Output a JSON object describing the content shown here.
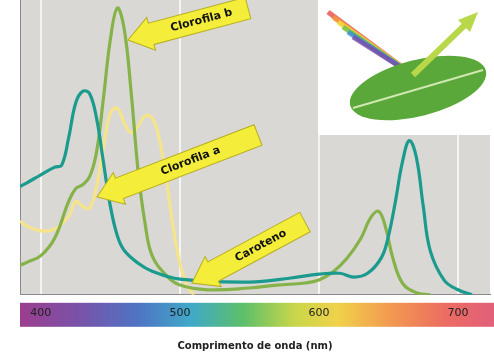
{
  "chart_data": {
    "type": "line",
    "x_label": "Comprimento de onda (nm)",
    "xlim": [
      385,
      723
    ],
    "xticks": [
      400,
      500,
      600,
      700
    ],
    "ylim": [
      0,
      100
    ],
    "grid": true,
    "tick_labels": "x",
    "series": [
      {
        "name": "Clorofila a",
        "color": "#1b9a8e",
        "x": [
          385,
          390,
          400,
          410,
          415,
          420,
          425,
          430,
          435,
          440,
          445,
          450,
          455,
          460,
          470,
          480,
          500,
          550,
          580,
          600,
          615,
          625,
          635,
          645,
          650,
          655,
          660,
          665,
          670,
          675,
          680,
          690,
          700,
          710
        ],
        "values": [
          36.7,
          38,
          40.7,
          43.3,
          44,
          53.3,
          65,
          69,
          68.3,
          60,
          45,
          30,
          20,
          15,
          10.7,
          8,
          5.3,
          4.3,
          5.7,
          7,
          7.3,
          6,
          7.3,
          12.7,
          20,
          31.7,
          45,
          52.3,
          46.7,
          30,
          15,
          5,
          1.7,
          0
        ]
      },
      {
        "name": "Clorofila b",
        "color": "#86b24a",
        "x": [
          385,
          390,
          400,
          410,
          420,
          425,
          430,
          435,
          440,
          445,
          450,
          455,
          460,
          465,
          470,
          475,
          480,
          490,
          500,
          520,
          550,
          570,
          590,
          600,
          610,
          620,
          630,
          637,
          643,
          648,
          653,
          660,
          670,
          680
        ],
        "values": [
          10,
          11,
          13.3,
          19.3,
          31.7,
          36,
          37.3,
          40,
          48.3,
          66.7,
          86.7,
          97.3,
          90,
          68.3,
          41.7,
          24,
          13.3,
          6.7,
          3.3,
          1.7,
          2.3,
          3.3,
          4,
          5,
          7.7,
          12.3,
          19,
          26,
          28.3,
          22.7,
          12.7,
          4,
          0.7,
          0
        ]
      },
      {
        "name": "Caroteno",
        "color": "#f6e48a",
        "x": [
          385,
          390,
          400,
          410,
          420,
          425,
          430,
          435,
          440,
          445,
          450,
          455,
          460,
          465,
          470,
          475,
          480,
          485,
          490,
          495,
          500,
          505,
          510
        ],
        "values": [
          25,
          23.3,
          21.7,
          22.3,
          26.7,
          31.7,
          30,
          29.3,
          36.7,
          50,
          61.7,
          63.3,
          58.3,
          55,
          57.3,
          60.7,
          60,
          53.3,
          40,
          23.3,
          10.7,
          3.3,
          0
        ]
      }
    ]
  }
}
